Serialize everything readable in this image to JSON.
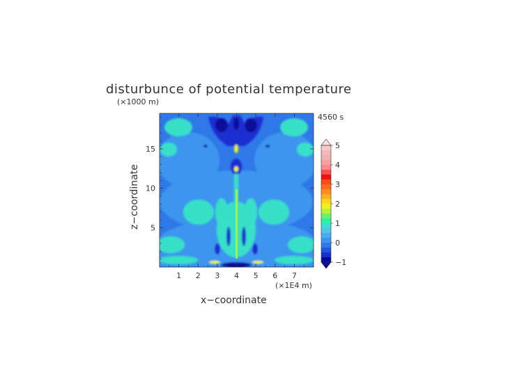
{
  "chart_data": {
    "type": "heatmap",
    "title": "disturbunce of potential temperature",
    "z_unit": "(×1000 m)",
    "x_unit": "(×1E4 m)",
    "time": "4560 s",
    "xlabel": "x−coordinate",
    "ylabel": "z−coordinate",
    "xlim": [
      0,
      8
    ],
    "ylim": [
      0,
      19.5
    ],
    "x_ticks": [
      "1",
      "2",
      "3",
      "4",
      "5",
      "6",
      "7"
    ],
    "y_ticks": [
      "5",
      "10",
      "15"
    ],
    "colorbar": {
      "labels": [
        "−1",
        "0",
        "1",
        "2",
        "3",
        "4",
        "5"
      ],
      "levels": [
        -1,
        -0.75,
        -0.5,
        -0.25,
        0,
        0.25,
        0.5,
        0.75,
        1,
        1.25,
        1.5,
        1.75,
        2,
        2.25,
        2.5,
        2.75,
        3,
        3.25,
        3.5,
        3.75,
        4,
        4.25,
        4.5,
        4.75,
        5
      ],
      "colors": [
        "#0a0a9a",
        "#1a2fcf",
        "#2255e0",
        "#2f78e8",
        "#3c95ee",
        "#4aaaf0",
        "#52c4e6",
        "#38e0c8",
        "#2df0a0",
        "#6cf06a",
        "#b6f23a",
        "#eef21c",
        "#ffd41a",
        "#ffb01c",
        "#ff8c1c",
        "#ff6a1a",
        "#ff4a1a",
        "#f41010",
        "#ff5050",
        "#ff8888",
        "#f5a0a0",
        "#f0b0b0",
        "#f4b8b8",
        "#f8c8c8"
      ]
    }
  }
}
